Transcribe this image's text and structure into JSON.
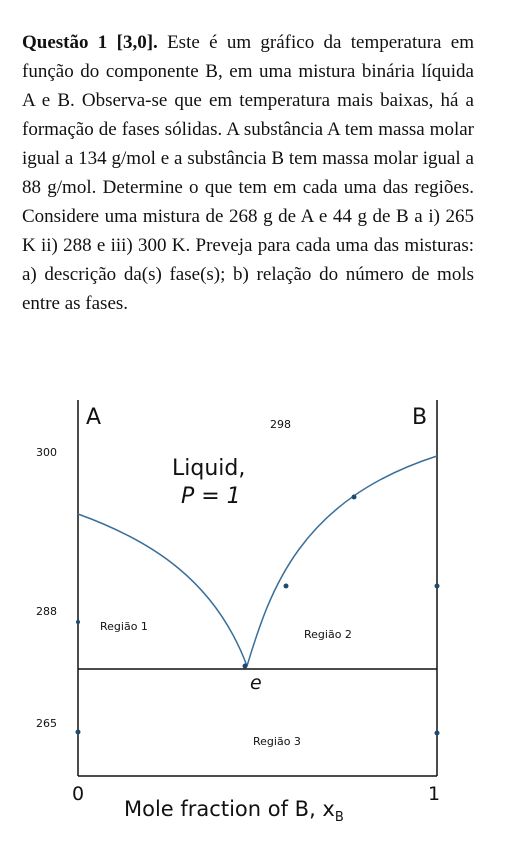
{
  "question": {
    "heading": "Questão 1 [3,0].",
    "body": "Este é um gráfico da temperatura em função do componente B, em uma mistura binária líquida A e B. Observa-se que em temperatura mais baixas, há a formação de fases sólidas. A substância A tem massa molar igual a 134 g/mol e a substância B tem massa molar igual a 88 g/mol. Determine o que tem em cada uma das regiões. Considere uma mistura de 268 g de A e 44 g de B a i) 265 K ii) 288 e iii) 300 K. Preveja para cada uma das misturas: a) descrição da(s) fase(s); b) relação do número de mols entre as fases."
  },
  "diagram": {
    "corner_a": "A",
    "corner_b": "B",
    "top_tick": "298",
    "y_ticks": [
      "300",
      "288",
      "265"
    ],
    "liquid_label": "Liquid,",
    "phase_count": "P = 1",
    "eutectic_label": "e",
    "region_1": "Região 1",
    "region_2": "Região 2",
    "region_3": "Região 3",
    "x_min": "0",
    "x_max": "1",
    "x_axis_title": "Mole fraction of B, x",
    "x_axis_subscript": "B",
    "colors": {
      "liquidus": "#3a6f9a",
      "axes": "#111111",
      "markers": "#1f4a70"
    }
  }
}
